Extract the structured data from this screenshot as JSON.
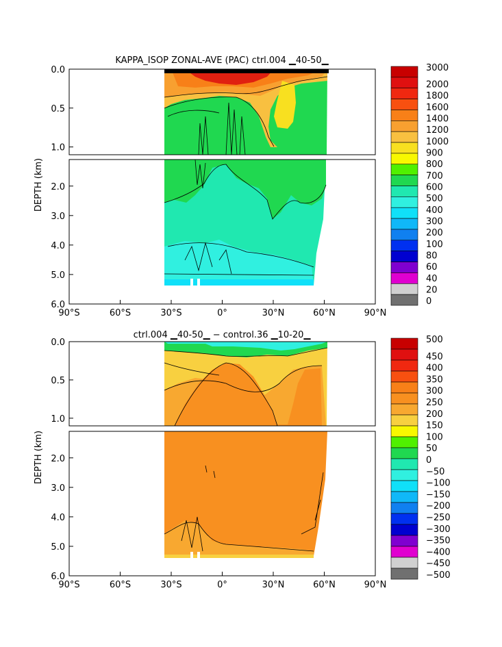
{
  "chart_data": [
    {
      "type": "heatmap",
      "title": "KAPPA_ISOP ZONAL-AVE (PAC) ctrl.004 ▁40-50▁",
      "ylabel": "DEPTH (km)",
      "xlabel": "",
      "x_ticks": [
        "90°S",
        "60°S",
        "30°S",
        "0°",
        "30°N",
        "60°N",
        "90°N"
      ],
      "x_tick_values": [
        -90,
        -60,
        -30,
        0,
        30,
        60,
        90
      ],
      "y_ticks_upper": [
        "0.0",
        "0.5",
        "1.0"
      ],
      "y_ticks_upper_values": [
        0.0,
        0.5,
        1.0
      ],
      "y_ticks_lower": [
        "2.0",
        "3.0",
        "4.0",
        "5.0",
        "6.0"
      ],
      "y_ticks_lower_values": [
        2.0,
        3.0,
        4.0,
        5.0,
        6.0
      ],
      "xlim": [
        -90,
        90
      ],
      "ylim_upper": [
        0,
        1.1
      ],
      "ylim_lower": [
        1.1,
        6.0
      ],
      "data_extent": {
        "lat_min": -35,
        "lat_max": 65,
        "depth_max": 5.35
      },
      "colorbar": {
        "labels": [
          "3000",
          "2000",
          "1800",
          "1600",
          "1400",
          "1200",
          "1000",
          "900",
          "800",
          "700",
          "600",
          "500",
          "400",
          "300",
          "200",
          "100",
          "80",
          "60",
          "40",
          "20",
          "0"
        ],
        "colors": [
          "#c80000",
          "#e01010",
          "#f02810",
          "#f85010",
          "#f88018",
          "#f8a030",
          "#f8c040",
          "#f8e020",
          "#f8f800",
          "#50f000",
          "#20d850",
          "#20e8b0",
          "#30f0e0",
          "#10e0f8",
          "#10b8f8",
          "#1080f0",
          "#0030f0",
          "#0000d0",
          "#8000d0",
          "#e000d0",
          "#d0d0d0",
          "#707070"
        ],
        "region_fills": [
          {
            "level": "1800",
            "color": "#e02010"
          },
          {
            "level": "1400",
            "color": "#f88018"
          },
          {
            "level": "1200",
            "color": "#f8a030"
          },
          {
            "level": "1000",
            "color": "#f8c040"
          },
          {
            "level": "900",
            "color": "#f8e020"
          },
          {
            "level": "600",
            "color": "#20d850"
          },
          {
            "level": "500",
            "color": "#20e8b0"
          },
          {
            "level": "400",
            "color": "#30f0e0"
          }
        ]
      }
    },
    {
      "type": "heatmap",
      "title": "ctrl.004 ▁40-50▁ − control.36 ▁10-20▁",
      "ylabel": "DEPTH (km)",
      "xlabel": "",
      "x_ticks": [
        "90°S",
        "60°S",
        "30°S",
        "0°",
        "30°N",
        "60°N",
        "90°N"
      ],
      "x_tick_values": [
        -90,
        -60,
        -30,
        0,
        30,
        60,
        90
      ],
      "y_ticks_upper": [
        "0.0",
        "0.5",
        "1.0"
      ],
      "y_ticks_upper_values": [
        0.0,
        0.5,
        1.0
      ],
      "y_ticks_lower": [
        "2.0",
        "3.0",
        "4.0",
        "5.0",
        "6.0"
      ],
      "y_ticks_lower_values": [
        2.0,
        3.0,
        4.0,
        5.0,
        6.0
      ],
      "xlim": [
        -90,
        90
      ],
      "ylim_upper": [
        0,
        1.1
      ],
      "ylim_lower": [
        1.1,
        6.0
      ],
      "data_extent": {
        "lat_min": -35,
        "lat_max": 65,
        "depth_max": 5.35
      },
      "colorbar": {
        "labels": [
          "500",
          "450",
          "400",
          "350",
          "300",
          "250",
          "200",
          "150",
          "100",
          "50",
          "0",
          "−50",
          "−100",
          "−150",
          "−200",
          "−250",
          "−300",
          "−350",
          "−400",
          "−450",
          "−500"
        ],
        "colors": [
          "#c80000",
          "#e01010",
          "#f02810",
          "#f85010",
          "#f88018",
          "#f89020",
          "#f8a830",
          "#f8d040",
          "#f8f800",
          "#50f000",
          "#20d850",
          "#20e8b0",
          "#30f0e0",
          "#10e0f8",
          "#10b8f8",
          "#1080f0",
          "#0030f0",
          "#0000d0",
          "#8000d0",
          "#e000d0",
          "#d0d0d0",
          "#707070"
        ],
        "region_fills": [
          {
            "level": "150",
            "color": "#f8d040"
          },
          {
            "level": "200",
            "color": "#f8a830"
          },
          {
            "level": "250",
            "color": "#f89020"
          },
          {
            "level": "0",
            "color": "#20d850"
          },
          {
            "level": "−50",
            "color": "#30f0e0"
          }
        ]
      }
    }
  ]
}
